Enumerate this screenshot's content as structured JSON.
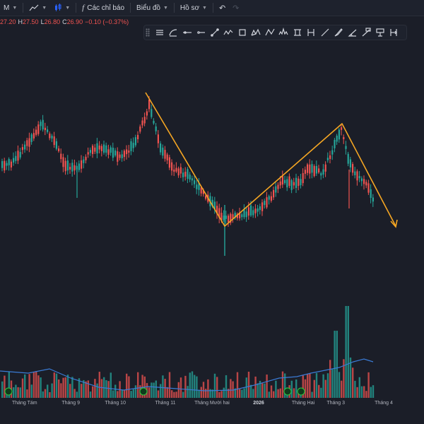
{
  "toolbar": {
    "interval_label": "M",
    "indicators_label": "Các chỉ báo",
    "chart_type_label": "Biểu đồ",
    "profile_label": "Hồ sơ"
  },
  "ohlc": {
    "open_value": "27.20",
    "high_label": "H",
    "high_value": "27.50",
    "low_label": "L",
    "low_value": "26.80",
    "close_label": "C",
    "close_value": "26.90",
    "change": "−0.10 (−0.37%)"
  },
  "drawing_tools": [
    "horizontal-lines",
    "curve",
    "horizontal-line",
    "horizontal-ray",
    "trend-line",
    "polyline",
    "rectangle",
    "xabcd-pattern",
    "abcd-pattern",
    "head-shoulders",
    "fib-retracement",
    "vertical-fib",
    "trend-line-alt",
    "brush",
    "angle",
    "info-line",
    "forecast",
    "date-range"
  ],
  "x_axis": [
    {
      "label": "Tháng Tám",
      "pos": 0.058,
      "strong": false
    },
    {
      "label": "Tháng 9",
      "pos": 0.167,
      "strong": false
    },
    {
      "label": "Tháng 10",
      "pos": 0.272,
      "strong": false
    },
    {
      "label": "Tháng 11",
      "pos": 0.39,
      "strong": false
    },
    {
      "label": "Tháng Mười hai",
      "pos": 0.5,
      "strong": false
    },
    {
      "label": "2026",
      "pos": 0.61,
      "strong": true
    },
    {
      "label": "Tháng Hai",
      "pos": 0.715,
      "strong": false
    },
    {
      "label": "Tháng 3",
      "pos": 0.792,
      "strong": false
    },
    {
      "label": "Tháng 4",
      "pos": 0.905,
      "strong": false
    }
  ],
  "colors": {
    "up": "#26a69a",
    "down": "#ef5350",
    "pattern_line": "#f5a623",
    "volume_ma": "#3a7bd5",
    "background": "#1b1e28"
  }
}
